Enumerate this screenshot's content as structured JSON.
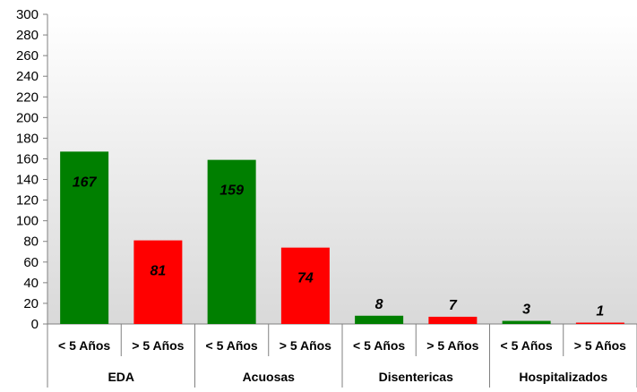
{
  "chart_data": {
    "type": "bar",
    "title": "",
    "xlabel": "",
    "ylabel": "",
    "ylim": [
      0,
      300
    ],
    "ytick_step": 20,
    "grid": false,
    "legend": "none",
    "groups": [
      {
        "label": "EDA",
        "bars": [
          {
            "label": "< 5 Años",
            "value": 167,
            "color": "#007f00"
          },
          {
            "label": "> 5 Años",
            "value": 81,
            "color": "#ff0000"
          }
        ]
      },
      {
        "label": "Acuosas",
        "bars": [
          {
            "label": "< 5 Años",
            "value": 159,
            "color": "#007f00"
          },
          {
            "label": "> 5 Años",
            "value": 74,
            "color": "#ff0000"
          }
        ]
      },
      {
        "label": "Disentericas",
        "bars": [
          {
            "label": "< 5 Años",
            "value": 8,
            "color": "#007f00"
          },
          {
            "label": "> 5 Años",
            "value": 7,
            "color": "#ff0000"
          }
        ]
      },
      {
        "label": "Hospitalizados",
        "bars": [
          {
            "label": "< 5 Años",
            "value": 3,
            "color": "#007f00"
          },
          {
            "label": "> 5 Años",
            "value": 1,
            "color": "#ff0000"
          }
        ]
      }
    ]
  }
}
